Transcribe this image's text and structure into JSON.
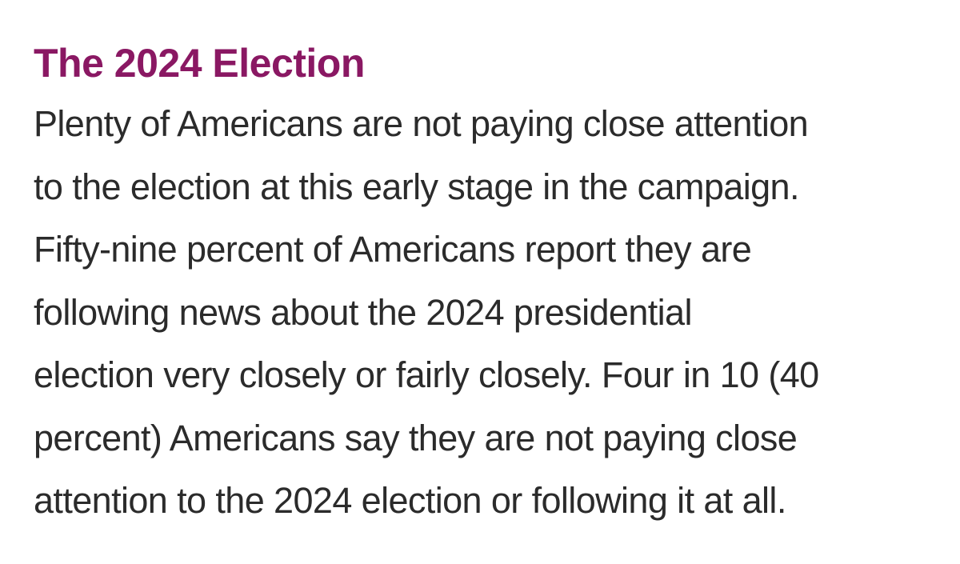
{
  "article": {
    "heading": "The 2024 Election",
    "lines": [
      "Plenty of Americans are not paying close attention",
      "to the election at this early stage in the campaign.",
      "Fifty-nine percent of Americans report they are",
      "following news about the 2024 presidential",
      "election very closely or fairly closely. Four in 10 (40",
      "percent) Americans say they are not paying close",
      "attention to the 2024 election or following it at all."
    ]
  },
  "colors": {
    "heading": "#8a1863",
    "text": "#2b2b2b",
    "background": "#ffffff"
  }
}
